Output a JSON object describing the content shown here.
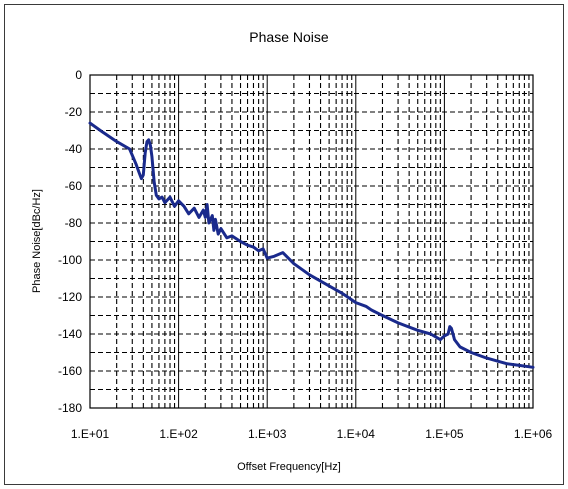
{
  "chart_data": {
    "type": "line",
    "title": "Phase Noise",
    "xlabel": "Offset Frequency[Hz]",
    "ylabel": "Phase Noise[dBc/Hz]",
    "x_scale": "log",
    "xlim": [
      10,
      1000000
    ],
    "ylim": [
      -180,
      0
    ],
    "x_tick_labels": [
      "1.E+01",
      "1.E+02",
      "1.E+03",
      "1.E+04",
      "1.E+05",
      "1.E+06"
    ],
    "y_ticks": [
      0,
      -20,
      -40,
      -60,
      -80,
      -100,
      -120,
      -140,
      -160,
      -180
    ],
    "grid": true,
    "line_color": "#1a2a8c",
    "series": [
      {
        "x": [
          10,
          14,
          20,
          28,
          33,
          36,
          38,
          40,
          42,
          44,
          46,
          48,
          50,
          53,
          56,
          60,
          65,
          70,
          80,
          90,
          100,
          115,
          130,
          150,
          170,
          190,
          200,
          210,
          220,
          240,
          250,
          260,
          280,
          300,
          350,
          400,
          500,
          600,
          700,
          800,
          900,
          1000,
          1200,
          1500,
          2000,
          3000,
          5000,
          7000,
          10000,
          13000,
          15000,
          20000,
          30000,
          50000,
          70000,
          90000,
          100000,
          110000,
          115000,
          120000,
          125000,
          130000,
          150000,
          200000,
          300000,
          500000,
          700000,
          1000000
        ],
        "y": [
          -26,
          -31,
          -36,
          -40,
          -48,
          -53,
          -56,
          -54,
          -42,
          -36,
          -35,
          -38,
          -44,
          -58,
          -65,
          -67,
          -66,
          -69,
          -66,
          -71,
          -68,
          -71,
          -75,
          -72,
          -77,
          -73,
          -77,
          -70,
          -80,
          -76,
          -84,
          -78,
          -86,
          -83,
          -88,
          -87,
          -90,
          -92,
          -93,
          -95,
          -94,
          -99,
          -98,
          -96,
          -102,
          -108,
          -114,
          -118,
          -123,
          -125,
          -127,
          -130,
          -134,
          -138,
          -140,
          -143,
          -141,
          -140,
          -136,
          -137,
          -140,
          -143,
          -147,
          -150,
          -153,
          -156,
          -157,
          -158
        ]
      }
    ]
  }
}
